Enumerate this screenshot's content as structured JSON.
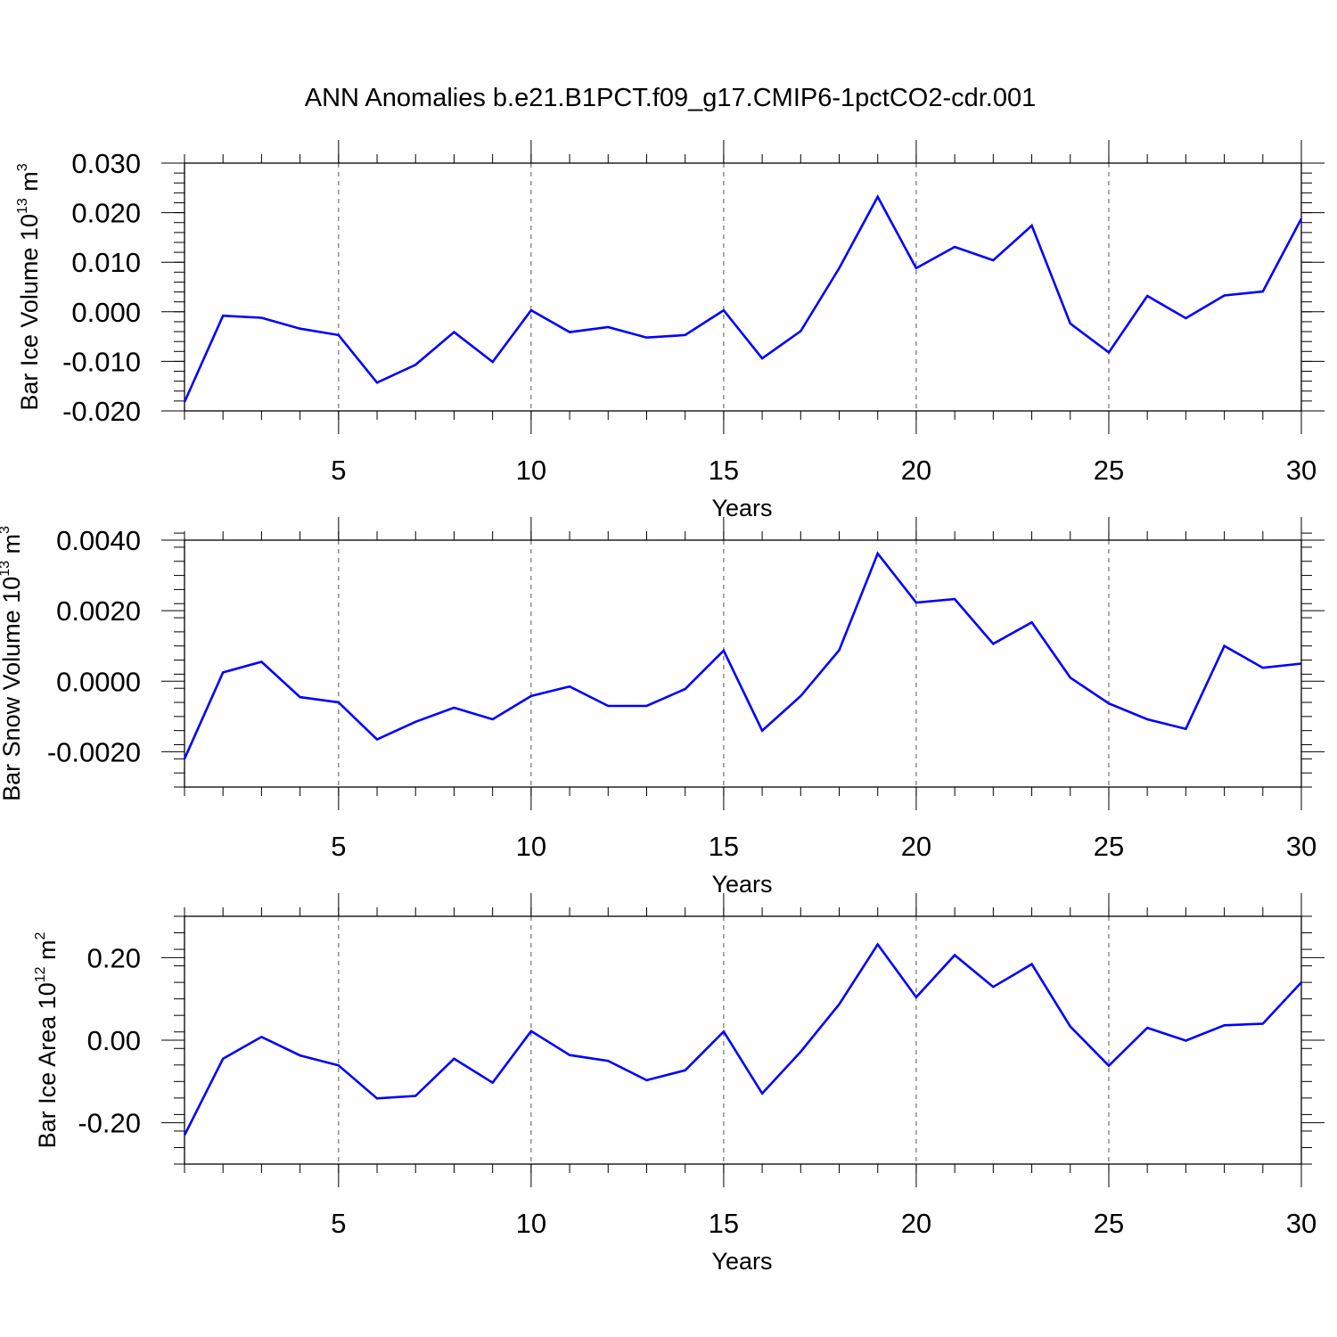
{
  "title": "ANN Anomalies b.e21.B1PCT.f09_g17.CMIP6-1pctCO2-cdr.001",
  "line_color": "#0000ff",
  "grid_color": "#555555",
  "chart_data": [
    {
      "type": "line",
      "name": "bar-ice-volume",
      "ylabel_main": "Bar Ice Volume 10",
      "ylabel_exp": "13",
      "ylabel_unit": " m",
      "ylabel_unit_exp": "3",
      "xlabel": "Years",
      "xlim": [
        1,
        30
      ],
      "ylim": [
        -0.02,
        0.03
      ],
      "xticks": [
        5,
        10,
        15,
        20,
        25,
        30
      ],
      "yticks": [
        -0.02,
        -0.01,
        0.0,
        0.01,
        0.02,
        0.03
      ],
      "ytick_labels": [
        "-0.020",
        "-0.010",
        "0.000",
        "0.010",
        "0.020",
        "0.030"
      ],
      "x": [
        1,
        2,
        3,
        4,
        5,
        6,
        7,
        8,
        9,
        10,
        11,
        12,
        13,
        14,
        15,
        16,
        17,
        18,
        19,
        20,
        21,
        22,
        23,
        24,
        25,
        26,
        27,
        28,
        29,
        30
      ],
      "values": [
        -0.0182,
        -0.0008,
        -0.0012,
        -0.0034,
        -0.0047,
        -0.0143,
        -0.0107,
        -0.0041,
        -0.0101,
        0.0003,
        -0.0041,
        -0.0031,
        -0.0052,
        -0.0047,
        0.0003,
        -0.0094,
        -0.0039,
        0.0088,
        0.0232,
        0.0088,
        0.0131,
        0.0104,
        0.0174,
        -0.0024,
        -0.0082,
        0.0032,
        -0.0013,
        0.0033,
        0.0041,
        0.0188
      ]
    },
    {
      "type": "line",
      "name": "bar-snow-volume",
      "ylabel_main": "Bar Snow Volume 10",
      "ylabel_exp": "13",
      "ylabel_unit": " m",
      "ylabel_unit_exp": "3",
      "xlabel": "Years",
      "xlim": [
        1,
        30
      ],
      "ylim": [
        -0.003,
        0.004
      ],
      "xticks": [
        5,
        10,
        15,
        20,
        25,
        30
      ],
      "yticks": [
        -0.002,
        0.0,
        0.002,
        0.004
      ],
      "ytick_labels": [
        "-0.0020",
        "0.0000",
        "0.0020",
        "0.0040"
      ],
      "x": [
        1,
        2,
        3,
        4,
        5,
        6,
        7,
        8,
        9,
        10,
        11,
        12,
        13,
        14,
        15,
        16,
        17,
        18,
        19,
        20,
        21,
        22,
        23,
        24,
        25,
        26,
        27,
        28,
        29,
        30
      ],
      "values": [
        -0.0022,
        0.00025,
        0.00055,
        -0.00045,
        -0.0006,
        -0.00165,
        -0.00115,
        -0.00075,
        -0.00108,
        -0.00042,
        -0.00015,
        -0.0007,
        -0.0007,
        -0.00022,
        0.00087,
        -0.0014,
        -0.00042,
        0.00088,
        0.00362,
        0.00223,
        0.00233,
        0.00106,
        0.00167,
        0.0001,
        -0.00063,
        -0.00108,
        -0.00135,
        0.001,
        0.00038,
        0.0005
      ]
    },
    {
      "type": "line",
      "name": "bar-ice-area",
      "ylabel_main": "Bar Ice Area 10",
      "ylabel_exp": "12",
      "ylabel_unit": " m",
      "ylabel_unit_exp": "2",
      "xlabel": "Years",
      "xlim": [
        1,
        30
      ],
      "ylim": [
        -0.3,
        0.3
      ],
      "xticks": [
        5,
        10,
        15,
        20,
        25,
        30
      ],
      "yticks": [
        -0.2,
        0.0,
        0.2
      ],
      "ytick_labels": [
        "-0.20",
        "0.00",
        "0.20"
      ],
      "x": [
        1,
        2,
        3,
        4,
        5,
        6,
        7,
        8,
        9,
        10,
        11,
        12,
        13,
        14,
        15,
        16,
        17,
        18,
        19,
        20,
        21,
        22,
        23,
        24,
        25,
        26,
        27,
        28,
        29,
        30
      ],
      "values": [
        -0.23,
        -0.045,
        0.008,
        -0.037,
        -0.061,
        -0.141,
        -0.135,
        -0.045,
        -0.103,
        0.022,
        -0.036,
        -0.05,
        -0.097,
        -0.073,
        0.021,
        -0.129,
        -0.028,
        0.087,
        0.232,
        0.104,
        0.206,
        0.129,
        0.184,
        0.033,
        -0.062,
        0.03,
        -0.001,
        0.036,
        0.04,
        0.14
      ]
    }
  ]
}
